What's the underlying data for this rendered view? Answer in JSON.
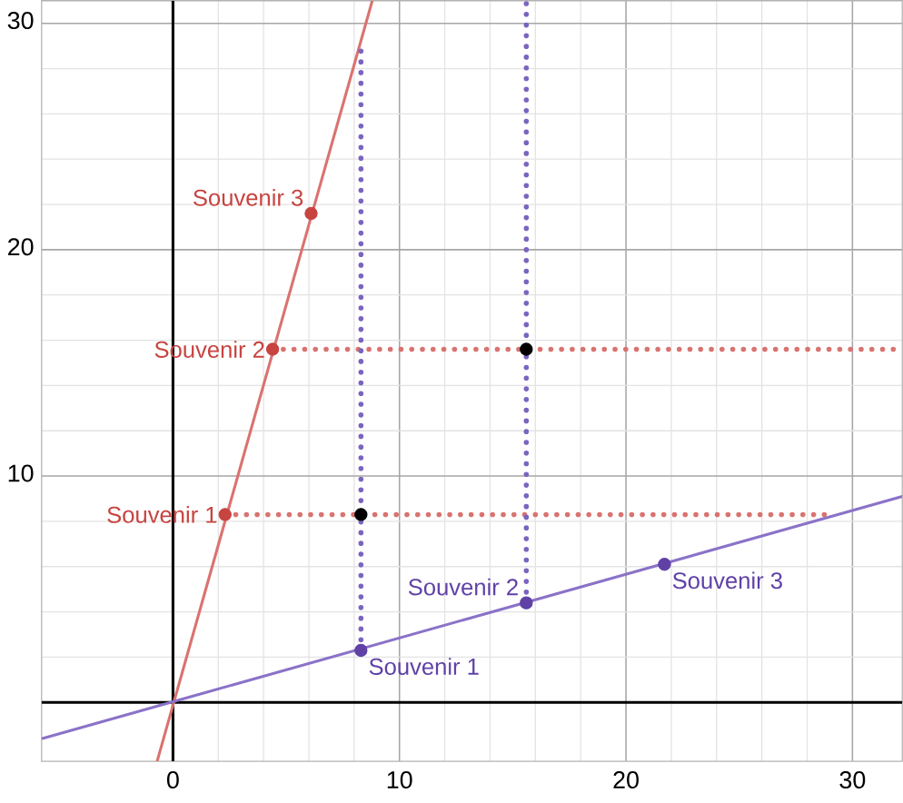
{
  "chart_data": {
    "type": "line",
    "xlim": [
      -5.8,
      32.2
    ],
    "ylim": [
      -2.6,
      31.0
    ],
    "xticks": [
      0,
      10,
      20,
      30
    ],
    "yticks": [
      {
        "value": 0,
        "label": null
      },
      10,
      20,
      30
    ],
    "grid": true,
    "series": [
      {
        "color": "#000000",
        "marker": "none",
        "x": [
          -5.8,
          32.2
        ],
        "values": [
          0,
          0
        ]
      },
      {
        "color": "#000000",
        "marker": "none",
        "x": [
          0,
          0
        ],
        "values": [
          -2.6,
          31.0
        ]
      },
      {
        "color": "#d9736f",
        "marker": "none",
        "x": [
          -0.7,
          8.8
        ],
        "values": [
          -2.6,
          31.0
        ]
      },
      {
        "color": "#8a72c8",
        "marker": "none",
        "x": [
          -5.8,
          32.2
        ],
        "values": [
          -1.6,
          9.1
        ]
      },
      {
        "color": "#d9736f",
        "marker": "none",
        "line_style": "dotted",
        "x": [
          2.3,
          29.0
        ],
        "values": [
          8.3,
          8.3
        ]
      },
      {
        "color": "#d9736f",
        "marker": "none",
        "line_style": "dotted",
        "x": [
          4.4,
          32.2
        ],
        "values": [
          15.6,
          15.6
        ]
      },
      {
        "color": "#7b64c0",
        "marker": "none",
        "line_style": "dotted",
        "x": [
          8.3,
          8.3
        ],
        "values": [
          2.3,
          29.0
        ]
      },
      {
        "color": "#7b64c0",
        "marker": "none",
        "line_style": "dotted",
        "x": [
          15.6,
          15.6
        ],
        "values": [
          4.4,
          31.0
        ]
      },
      {
        "type": "scatter",
        "color": "#c74440",
        "marker": "circle",
        "x": [
          2.3,
          4.4,
          6.1
        ],
        "values": [
          8.3,
          15.6,
          21.6
        ]
      },
      {
        "type": "scatter",
        "color": "#6042a6",
        "marker": "circle",
        "x": [
          8.3,
          15.6,
          21.7
        ],
        "values": [
          2.3,
          4.4,
          6.1
        ]
      },
      {
        "type": "scatter",
        "color": "#000000",
        "marker": "circle",
        "x": [
          8.3,
          15.6
        ],
        "values": [
          8.3,
          15.6
        ]
      }
    ],
    "annotations": [
      {
        "text": "Souvenir 1",
        "x": 2.3,
        "y": 8.3
      },
      {
        "text": "Souvenir 2",
        "x": 4.4,
        "y": 15.6
      },
      {
        "text": "Souvenir 3",
        "x": 6.1,
        "y": 21.6
      },
      {
        "text": "Souvenir 1",
        "x": 8.3,
        "y": 2.3
      },
      {
        "text": "Souvenir 2",
        "x": 15.6,
        "y": 4.4
      },
      {
        "text": "Souvenir 3",
        "x": 21.7,
        "y": 6.1
      }
    ]
  }
}
